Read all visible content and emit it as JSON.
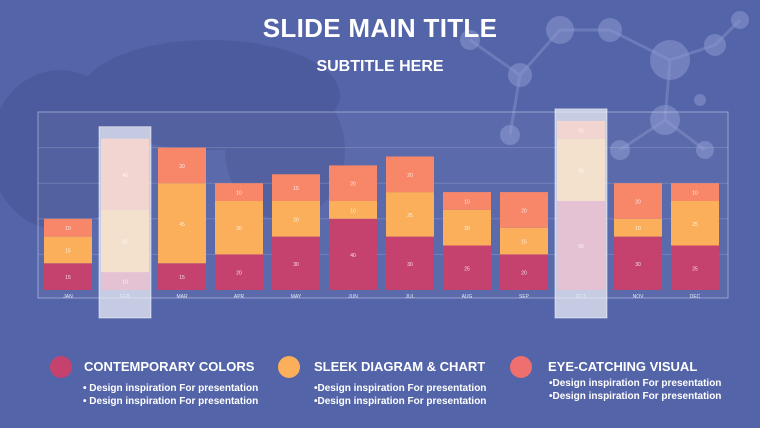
{
  "slide": {
    "title": "SLIDE MAIN TITLE",
    "subtitle": "SUBTITLE HERE"
  },
  "colors": {
    "background": "#5464a8",
    "series1": "#c5426f",
    "series2": "#fbaf5a",
    "series3": "#f8876a",
    "highlight": "#f0f2fa"
  },
  "legend": [
    {
      "label": "CONTEMPORARY COLORS",
      "color": "#c5426f",
      "lines": [
        "• Design inspiration For presentation",
        "• Design inspiration For presentation"
      ]
    },
    {
      "label": "SLEEK DIAGRAM & CHART",
      "color": "#fbaf5a",
      "lines": [
        "•Design inspiration For presentation",
        "•Design inspiration For presentation"
      ]
    },
    {
      "label": "EYE-CATCHING VISUAL",
      "color": "#ef6f6f",
      "lines": [
        "•Design inspiration For presentation",
        "•Design inspiration For presentation"
      ]
    }
  ],
  "chart_data": {
    "type": "bar",
    "stacked": true,
    "categories": [
      "JAN",
      "FEB",
      "MAR",
      "APR",
      "MAY",
      "JUN",
      "JUL",
      "AUG",
      "SEP",
      "OCT",
      "NOV",
      "DEC"
    ],
    "series": [
      {
        "values": [
          15,
          10,
          15,
          20,
          30,
          40,
          30,
          25,
          20,
          50,
          30,
          25
        ]
      },
      {
        "values": [
          15,
          35,
          45,
          30,
          20,
          10,
          25,
          20,
          15,
          35,
          10,
          25
        ]
      },
      {
        "values": [
          10,
          40,
          20,
          10,
          15,
          20,
          20,
          10,
          20,
          10,
          20,
          10
        ]
      }
    ],
    "highlighted": [
      "FEB",
      "OCT"
    ],
    "ylim": [
      0,
      100
    ],
    "grid": true
  }
}
